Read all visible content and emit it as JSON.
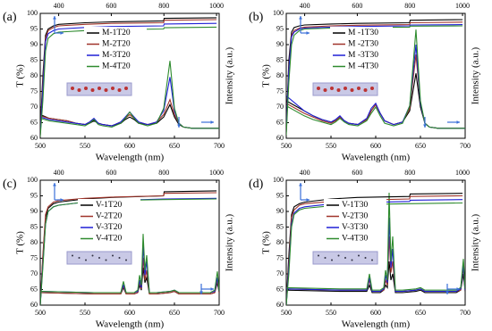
{
  "chart_data": [
    {
      "type": "line",
      "label": "(a)",
      "xlabel": "Wavelength (nm)",
      "ylabel": "T (%)",
      "y2label": "Intensity (a.u.)",
      "xlim": [
        500,
        700
      ],
      "xticks": [
        500,
        550,
        600,
        650,
        700
      ],
      "x2lim": [
        330,
        1010
      ],
      "x2ticks": [
        400,
        600,
        800,
        1000
      ],
      "ylim": [
        60,
        100
      ],
      "yticks": [
        60,
        65,
        70,
        75,
        80,
        85,
        90,
        95,
        100
      ],
      "y2lim": [
        0,
        100
      ],
      "x_transmittance": [
        330,
        340,
        350,
        360,
        380,
        400,
        500,
        600,
        799,
        801,
        1000
      ],
      "x_emission": [
        500,
        510,
        520,
        530,
        540,
        550,
        555,
        560,
        565,
        570,
        580,
        590,
        595,
        600,
        605,
        610,
        620,
        630,
        638,
        645,
        650,
        655,
        660,
        670,
        680,
        690,
        700
      ],
      "series": [
        {
          "name": "M-1T20",
          "color": "#000000",
          "transmittance": [
            62,
            80,
            93,
            95,
            96,
            96.5,
            97,
            97.3,
            97.6,
            98.4,
            98.6
          ],
          "emission": [
            19,
            16,
            15,
            14,
            12,
            11,
            12,
            14,
            12,
            11,
            10,
            12,
            15,
            17,
            15,
            12,
            11,
            12,
            17,
            27,
            17,
            11,
            9,
            8,
            8,
            8,
            8
          ]
        },
        {
          "name": "M-2T20",
          "color": "#a0342a",
          "transmittance": [
            61,
            78,
            92,
            94.5,
            95.5,
            96,
            96.5,
            96.8,
            97,
            97.8,
            98
          ],
          "emission": [
            18,
            16,
            15,
            14,
            12,
            11,
            13,
            15,
            12,
            11,
            10,
            13,
            16,
            19,
            16,
            13,
            11,
            13,
            19,
            31,
            19,
            12,
            9,
            8,
            8,
            8,
            8
          ]
        },
        {
          "name": "M-3T20",
          "color": "#1f1fd6",
          "transmittance": [
            61,
            76,
            91,
            93.5,
            94.5,
            95,
            95.5,
            95.8,
            96,
            96.6,
            96.8
          ],
          "emission": [
            17,
            15,
            14,
            13,
            12,
            11,
            13,
            16,
            12,
            11,
            10,
            13,
            17,
            21,
            17,
            13,
            11,
            13,
            22,
            49,
            22,
            12,
            9,
            8,
            8,
            8,
            8
          ]
        },
        {
          "name": "M-4T20",
          "color": "#2e8b2e",
          "transmittance": [
            60.5,
            72,
            88,
            92,
            93.5,
            94,
            94.5,
            94.8,
            95,
            95.4,
            95.6
          ],
          "emission": [
            16,
            14,
            13,
            12,
            11,
            10,
            12,
            15,
            11,
            10,
            9,
            12,
            16,
            21,
            16,
            12,
            10,
            12,
            24,
            62,
            24,
            12,
            9,
            8,
            8,
            8,
            8
          ]
        }
      ]
    },
    {
      "type": "line",
      "label": "(b)",
      "xlabel": "Wavelength (nm)",
      "ylabel": "T (%)",
      "y2label": "Intensity (a.u.)",
      "xlim": [
        500,
        700
      ],
      "xticks": [
        500,
        550,
        600,
        650,
        700
      ],
      "x2lim": [
        330,
        1010
      ],
      "x2ticks": [
        400,
        600,
        800,
        1000
      ],
      "ylim": [
        60,
        100
      ],
      "yticks": [
        60,
        65,
        70,
        75,
        80,
        85,
        90,
        95,
        100
      ],
      "y2lim": [
        0,
        100
      ],
      "x_transmittance": [
        330,
        340,
        350,
        360,
        380,
        400,
        500,
        600,
        799,
        801,
        1000
      ],
      "x_emission": [
        500,
        510,
        520,
        530,
        540,
        550,
        555,
        560,
        565,
        570,
        580,
        590,
        595,
        600,
        605,
        610,
        620,
        630,
        638,
        645,
        650,
        655,
        660,
        670,
        680,
        690,
        700
      ],
      "series": [
        {
          "name": "M -1T30",
          "color": "#000000",
          "transmittance": [
            63,
            85,
            94,
            95.5,
            96,
            96.3,
            96.6,
            96.8,
            97,
            97.8,
            98
          ],
          "emission": [
            30,
            26,
            22,
            18,
            15,
            13,
            14,
            17,
            14,
            12,
            11,
            15,
            22,
            27,
            20,
            14,
            11,
            13,
            22,
            52,
            25,
            12,
            9,
            8,
            8,
            8,
            8
          ]
        },
        {
          "name": "M -2T30",
          "color": "#a0342a",
          "transmittance": [
            62,
            83,
            93,
            94.5,
            95.3,
            95.6,
            96,
            96.2,
            96.4,
            97,
            97.2
          ],
          "emission": [
            28,
            24,
            20,
            17,
            14,
            12,
            14,
            17,
            14,
            12,
            11,
            15,
            22,
            27,
            20,
            14,
            11,
            13,
            24,
            67,
            28,
            12,
            9,
            8,
            8,
            8,
            8
          ]
        },
        {
          "name": "M -3T30",
          "color": "#1f1fd6",
          "transmittance": [
            62,
            82,
            92.5,
            94,
            95,
            95.3,
            95.6,
            95.8,
            96,
            96.3,
            96.4
          ],
          "emission": [
            34,
            28,
            22,
            18,
            15,
            13,
            15,
            18,
            14,
            12,
            11,
            16,
            24,
            28,
            20,
            14,
            11,
            13,
            26,
            75,
            28,
            12,
            9,
            8,
            8,
            8,
            8
          ]
        },
        {
          "name": "M -4T30",
          "color": "#2e8b2e",
          "transmittance": [
            61,
            78,
            90,
            93,
            94.5,
            95,
            95.3,
            95.5,
            95.6,
            95.9,
            96
          ],
          "emission": [
            26,
            22,
            18,
            15,
            13,
            11,
            13,
            16,
            13,
            11,
            10,
            14,
            20,
            25,
            18,
            12,
            10,
            12,
            26,
            87,
            30,
            12,
            9,
            8,
            8,
            8,
            8
          ]
        }
      ]
    },
    {
      "type": "line",
      "label": "(c)",
      "xlabel": "Wavelength (nm)",
      "ylabel": "T (%)",
      "y2label": "Intensity (a.u.)",
      "xlim": [
        500,
        700
      ],
      "xticks": [
        500,
        550,
        600,
        650,
        700
      ],
      "x2lim": [
        330,
        1010
      ],
      "x2ticks": [
        400,
        600,
        800,
        1000
      ],
      "ylim": [
        60,
        100
      ],
      "yticks": [
        60,
        65,
        70,
        75,
        80,
        85,
        90,
        95,
        100
      ],
      "y2lim": [
        0,
        100
      ],
      "x_transmittance": [
        330,
        340,
        350,
        360,
        380,
        400,
        500,
        600,
        799,
        801,
        1000
      ],
      "x_emission": [
        500,
        560,
        585,
        590,
        593,
        596,
        605,
        609,
        611,
        613,
        615,
        617,
        619,
        622,
        630,
        645,
        650,
        655,
        690,
        695,
        698,
        700
      ],
      "series": [
        {
          "name": "V-1T20",
          "color": "#000000",
          "transmittance": [
            60,
            75,
            88,
            91,
            92.5,
            93,
            94,
            94.5,
            95,
            96.3,
            96.6
          ],
          "emission": [
            10,
            9,
            9,
            9,
            14,
            9,
            9,
            10,
            16,
            12,
            30,
            18,
            22,
            9,
            9,
            10,
            11,
            9,
            9,
            10,
            18,
            10
          ]
        },
        {
          "name": "V-2T20",
          "color": "#a0342a",
          "transmittance": [
            60,
            76,
            89,
            91.5,
            93,
            93.5,
            94.2,
            94.6,
            95,
            95.8,
            96
          ],
          "emission": [
            10,
            9,
            9,
            9,
            15,
            9,
            9,
            10,
            18,
            13,
            38,
            20,
            28,
            9,
            9,
            10,
            11,
            9,
            9,
            10,
            20,
            10
          ]
        },
        {
          "name": "V-3T20",
          "color": "#1f1fd6",
          "transmittance": [
            60,
            73,
            86,
            90,
            91.5,
            92,
            93,
            93.5,
            94,
            94,
            94.2
          ],
          "emission": [
            11,
            10,
            10,
            10,
            16,
            10,
            10,
            11,
            20,
            14,
            48,
            24,
            35,
            10,
            10,
            11,
            12,
            10,
            10,
            11,
            22,
            11
          ]
        },
        {
          "name": "V-4T20",
          "color": "#2e8b2e",
          "transmittance": [
            60,
            72,
            86,
            90,
            91.5,
            92,
            93,
            93.5,
            93.8,
            93.8,
            94
          ],
          "emission": [
            11,
            10,
            10,
            10,
            19,
            10,
            10,
            12,
            24,
            16,
            57,
            28,
            40,
            10,
            10,
            11,
            12,
            10,
            10,
            12,
            27,
            11
          ]
        }
      ]
    },
    {
      "type": "line",
      "label": "(d)",
      "xlabel": "Wavelength (nm)",
      "ylabel": "T (%)",
      "y2label": "Intensity (a.u.)",
      "xlim": [
        500,
        700
      ],
      "xticks": [
        500,
        550,
        600,
        650,
        700
      ],
      "x2lim": [
        330,
        1010
      ],
      "x2ticks": [
        400,
        600,
        800,
        1000
      ],
      "ylim": [
        60,
        100
      ],
      "yticks": [
        60,
        65,
        70,
        75,
        80,
        85,
        90,
        95,
        100
      ],
      "y2lim": [
        0,
        100
      ],
      "x_transmittance": [
        330,
        340,
        350,
        360,
        380,
        400,
        500,
        600,
        799,
        801,
        1000
      ],
      "x_emission": [
        500,
        560,
        585,
        590,
        593,
        596,
        605,
        609,
        611,
        613,
        615,
        617,
        619,
        622,
        630,
        645,
        650,
        655,
        690,
        695,
        698,
        700
      ],
      "series": [
        {
          "name": "V-1T30",
          "color": "#000000",
          "transmittance": [
            60,
            76,
            89,
            91.5,
            92.5,
            93,
            94,
            94.5,
            94.8,
            95.6,
            95.8
          ],
          "emission": [
            12,
            11,
            11,
            11,
            16,
            10,
            10,
            12,
            16,
            14,
            35,
            20,
            25,
            10,
            10,
            11,
            12,
            10,
            10,
            12,
            25,
            11
          ]
        },
        {
          "name": "V-2T30",
          "color": "#a0342a",
          "transmittance": [
            60,
            74,
            88,
            90.5,
            92,
            92.5,
            93.2,
            93.6,
            94,
            94.8,
            95
          ],
          "emission": [
            13,
            12,
            12,
            12,
            20,
            11,
            11,
            12,
            20,
            16,
            55,
            26,
            35,
            11,
            11,
            12,
            13,
            11,
            11,
            12,
            30,
            12
          ]
        },
        {
          "name": "V-3T30",
          "color": "#1f1fd6",
          "transmittance": [
            60,
            72,
            86,
            89.5,
            91,
            91.5,
            92.4,
            92.8,
            93.2,
            93.6,
            93.8
          ],
          "emission": [
            13,
            12,
            12,
            12,
            22,
            11,
            11,
            13,
            24,
            18,
            70,
            30,
            45,
            11,
            11,
            12,
            13,
            11,
            11,
            13,
            32,
            12
          ]
        },
        {
          "name": "V-4T30",
          "color": "#2e8b2e",
          "transmittance": [
            60,
            70,
            85,
            89,
            90.5,
            91,
            91.8,
            92.2,
            92.5,
            92.5,
            92.7
          ],
          "emission": [
            14,
            13,
            13,
            13,
            25,
            12,
            12,
            14,
            28,
            20,
            90,
            35,
            55,
            12,
            12,
            13,
            14,
            12,
            12,
            14,
            37,
            13
          ]
        }
      ]
    }
  ]
}
